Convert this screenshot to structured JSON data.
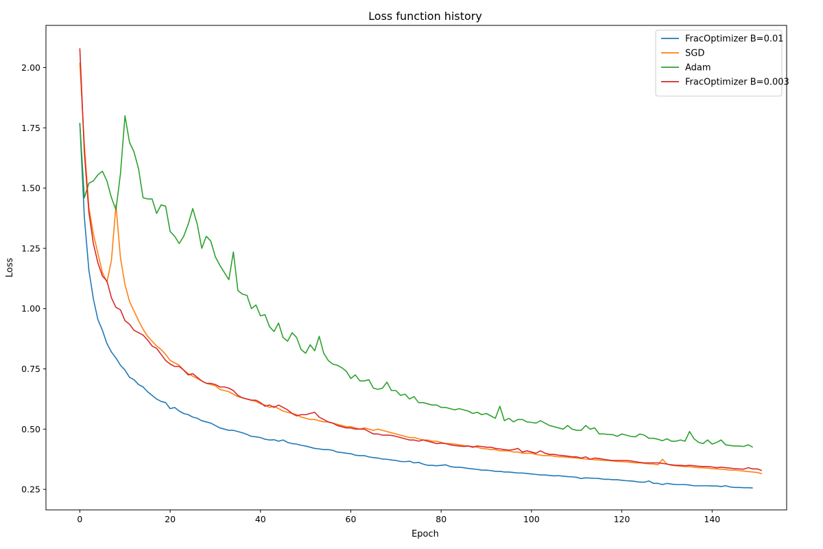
{
  "chart_data": {
    "type": "line",
    "title": "Loss function history",
    "xlabel": "Epoch",
    "ylabel": "Loss",
    "xlim": [
      -7.5,
      156.5
    ],
    "ylim": [
      0.165,
      2.175
    ],
    "xticks": [
      0,
      20,
      40,
      60,
      80,
      100,
      120,
      140
    ],
    "yticks": [
      0.25,
      0.5,
      0.75,
      1.0,
      1.25,
      1.5,
      1.75,
      2.0
    ],
    "ytick_labels": [
      "0.25",
      "0.50",
      "0.75",
      "1.00",
      "1.25",
      "1.50",
      "1.75",
      "2.00"
    ],
    "grid": false,
    "legend_position": "top-right",
    "series": [
      {
        "name": "FracOptimizer B=0.01",
        "color": "#1f77b4",
        "values": [
          1.77,
          1.38,
          1.16,
          1.04,
          0.955,
          0.91,
          0.855,
          0.82,
          0.795,
          0.765,
          0.745,
          0.715,
          0.705,
          0.685,
          0.675,
          0.655,
          0.64,
          0.625,
          0.615,
          0.61,
          0.585,
          0.59,
          0.575,
          0.565,
          0.56,
          0.55,
          0.545,
          0.535,
          0.53,
          0.525,
          0.515,
          0.505,
          0.5,
          0.495,
          0.495,
          0.49,
          0.485,
          0.478,
          0.47,
          0.468,
          0.465,
          0.458,
          0.455,
          0.456,
          0.45,
          0.455,
          0.445,
          0.44,
          0.438,
          0.433,
          0.43,
          0.425,
          0.42,
          0.418,
          0.415,
          0.415,
          0.412,
          0.405,
          0.403,
          0.4,
          0.398,
          0.392,
          0.39,
          0.39,
          0.385,
          0.382,
          0.38,
          0.376,
          0.375,
          0.372,
          0.37,
          0.366,
          0.365,
          0.367,
          0.36,
          0.362,
          0.355,
          0.35,
          0.35,
          0.348,
          0.35,
          0.352,
          0.345,
          0.342,
          0.342,
          0.34,
          0.337,
          0.335,
          0.333,
          0.33,
          0.33,
          0.328,
          0.325,
          0.325,
          0.322,
          0.322,
          0.32,
          0.318,
          0.318,
          0.316,
          0.314,
          0.312,
          0.31,
          0.31,
          0.308,
          0.306,
          0.307,
          0.305,
          0.303,
          0.302,
          0.3,
          0.295,
          0.298,
          0.297,
          0.296,
          0.295,
          0.292,
          0.292,
          0.29,
          0.29,
          0.288,
          0.286,
          0.285,
          0.283,
          0.28,
          0.28,
          0.285,
          0.275,
          0.275,
          0.27,
          0.275,
          0.272,
          0.27,
          0.27,
          0.27,
          0.268,
          0.265,
          0.265,
          0.265,
          0.265,
          0.264,
          0.264,
          0.262,
          0.265,
          0.26,
          0.258,
          0.258,
          0.257,
          0.257,
          0.256
        ]
      },
      {
        "name": "SGD",
        "color": "#ff7f0e",
        "values": [
          2.02,
          1.68,
          1.42,
          1.31,
          1.23,
          1.15,
          1.11,
          1.2,
          1.43,
          1.21,
          1.1,
          1.03,
          0.99,
          0.95,
          0.915,
          0.885,
          0.865,
          0.845,
          0.83,
          0.81,
          0.785,
          0.775,
          0.765,
          0.745,
          0.73,
          0.72,
          0.71,
          0.7,
          0.69,
          0.685,
          0.68,
          0.665,
          0.66,
          0.655,
          0.645,
          0.635,
          0.63,
          0.625,
          0.62,
          0.615,
          0.605,
          0.6,
          0.59,
          0.595,
          0.585,
          0.575,
          0.57,
          0.565,
          0.56,
          0.55,
          0.545,
          0.54,
          0.54,
          0.535,
          0.53,
          0.53,
          0.525,
          0.52,
          0.515,
          0.51,
          0.51,
          0.505,
          0.5,
          0.505,
          0.5,
          0.495,
          0.5,
          0.495,
          0.49,
          0.485,
          0.48,
          0.475,
          0.47,
          0.465,
          0.465,
          0.46,
          0.455,
          0.455,
          0.45,
          0.45,
          0.445,
          0.44,
          0.44,
          0.438,
          0.435,
          0.432,
          0.43,
          0.428,
          0.425,
          0.42,
          0.418,
          0.415,
          0.415,
          0.41,
          0.41,
          0.41,
          0.405,
          0.405,
          0.4,
          0.4,
          0.4,
          0.395,
          0.392,
          0.39,
          0.39,
          0.388,
          0.385,
          0.385,
          0.383,
          0.382,
          0.38,
          0.378,
          0.376,
          0.375,
          0.373,
          0.372,
          0.37,
          0.37,
          0.368,
          0.366,
          0.365,
          0.364,
          0.362,
          0.36,
          0.36,
          0.358,
          0.356,
          0.355,
          0.352,
          0.375,
          0.355,
          0.35,
          0.348,
          0.346,
          0.345,
          0.344,
          0.342,
          0.34,
          0.34,
          0.338,
          0.336,
          0.335,
          0.334,
          0.332,
          0.33,
          0.33,
          0.328,
          0.326,
          0.324,
          0.322,
          0.32,
          0.315
        ]
      },
      {
        "name": "Adam",
        "color": "#2ca02c",
        "values": [
          1.77,
          1.46,
          1.52,
          1.53,
          1.555,
          1.57,
          1.53,
          1.46,
          1.41,
          1.56,
          1.8,
          1.69,
          1.65,
          1.58,
          1.46,
          1.455,
          1.455,
          1.395,
          1.43,
          1.425,
          1.32,
          1.3,
          1.27,
          1.3,
          1.35,
          1.415,
          1.35,
          1.25,
          1.3,
          1.28,
          1.215,
          1.18,
          1.15,
          1.12,
          1.235,
          1.075,
          1.06,
          1.055,
          1.0,
          1.015,
          0.97,
          0.975,
          0.925,
          0.905,
          0.94,
          0.88,
          0.865,
          0.9,
          0.88,
          0.83,
          0.815,
          0.85,
          0.825,
          0.885,
          0.815,
          0.785,
          0.77,
          0.765,
          0.755,
          0.74,
          0.71,
          0.725,
          0.7,
          0.7,
          0.705,
          0.67,
          0.665,
          0.67,
          0.695,
          0.66,
          0.66,
          0.64,
          0.645,
          0.625,
          0.635,
          0.61,
          0.61,
          0.605,
          0.6,
          0.6,
          0.59,
          0.59,
          0.585,
          0.58,
          0.585,
          0.58,
          0.575,
          0.565,
          0.57,
          0.56,
          0.565,
          0.555,
          0.545,
          0.595,
          0.535,
          0.545,
          0.53,
          0.54,
          0.54,
          0.53,
          0.528,
          0.525,
          0.535,
          0.525,
          0.515,
          0.51,
          0.505,
          0.5,
          0.515,
          0.5,
          0.495,
          0.495,
          0.515,
          0.5,
          0.505,
          0.48,
          0.48,
          0.478,
          0.477,
          0.47,
          0.48,
          0.475,
          0.47,
          0.468,
          0.48,
          0.475,
          0.462,
          0.462,
          0.458,
          0.452,
          0.46,
          0.45,
          0.45,
          0.455,
          0.45,
          0.49,
          0.46,
          0.445,
          0.44,
          0.455,
          0.438,
          0.445,
          0.455,
          0.435,
          0.432,
          0.43,
          0.43,
          0.428,
          0.435,
          0.425
        ]
      },
      {
        "name": "FracOptimizer B=0.003",
        "color": "#d62728",
        "values": [
          2.08,
          1.65,
          1.4,
          1.27,
          1.19,
          1.135,
          1.115,
          1.045,
          1.005,
          0.995,
          0.95,
          0.935,
          0.91,
          0.9,
          0.89,
          0.87,
          0.845,
          0.835,
          0.81,
          0.785,
          0.77,
          0.76,
          0.76,
          0.745,
          0.725,
          0.73,
          0.715,
          0.7,
          0.69,
          0.69,
          0.685,
          0.675,
          0.675,
          0.67,
          0.66,
          0.64,
          0.63,
          0.625,
          0.62,
          0.62,
          0.61,
          0.595,
          0.6,
          0.59,
          0.6,
          0.59,
          0.58,
          0.565,
          0.555,
          0.56,
          0.56,
          0.565,
          0.57,
          0.55,
          0.54,
          0.53,
          0.525,
          0.515,
          0.51,
          0.505,
          0.505,
          0.5,
          0.5,
          0.5,
          0.49,
          0.48,
          0.48,
          0.475,
          0.475,
          0.474,
          0.47,
          0.465,
          0.46,
          0.455,
          0.455,
          0.45,
          0.455,
          0.45,
          0.445,
          0.44,
          0.442,
          0.44,
          0.435,
          0.432,
          0.43,
          0.428,
          0.43,
          0.425,
          0.43,
          0.428,
          0.425,
          0.425,
          0.42,
          0.418,
          0.415,
          0.413,
          0.415,
          0.42,
          0.405,
          0.41,
          0.405,
          0.4,
          0.41,
          0.4,
          0.395,
          0.395,
          0.392,
          0.39,
          0.388,
          0.385,
          0.385,
          0.38,
          0.385,
          0.375,
          0.38,
          0.378,
          0.375,
          0.372,
          0.37,
          0.37,
          0.37,
          0.37,
          0.368,
          0.365,
          0.362,
          0.36,
          0.36,
          0.36,
          0.36,
          0.358,
          0.355,
          0.352,
          0.35,
          0.35,
          0.348,
          0.35,
          0.348,
          0.346,
          0.345,
          0.345,
          0.343,
          0.34,
          0.342,
          0.34,
          0.338,
          0.336,
          0.335,
          0.334,
          0.34,
          0.335,
          0.335,
          0.328
        ]
      }
    ]
  }
}
